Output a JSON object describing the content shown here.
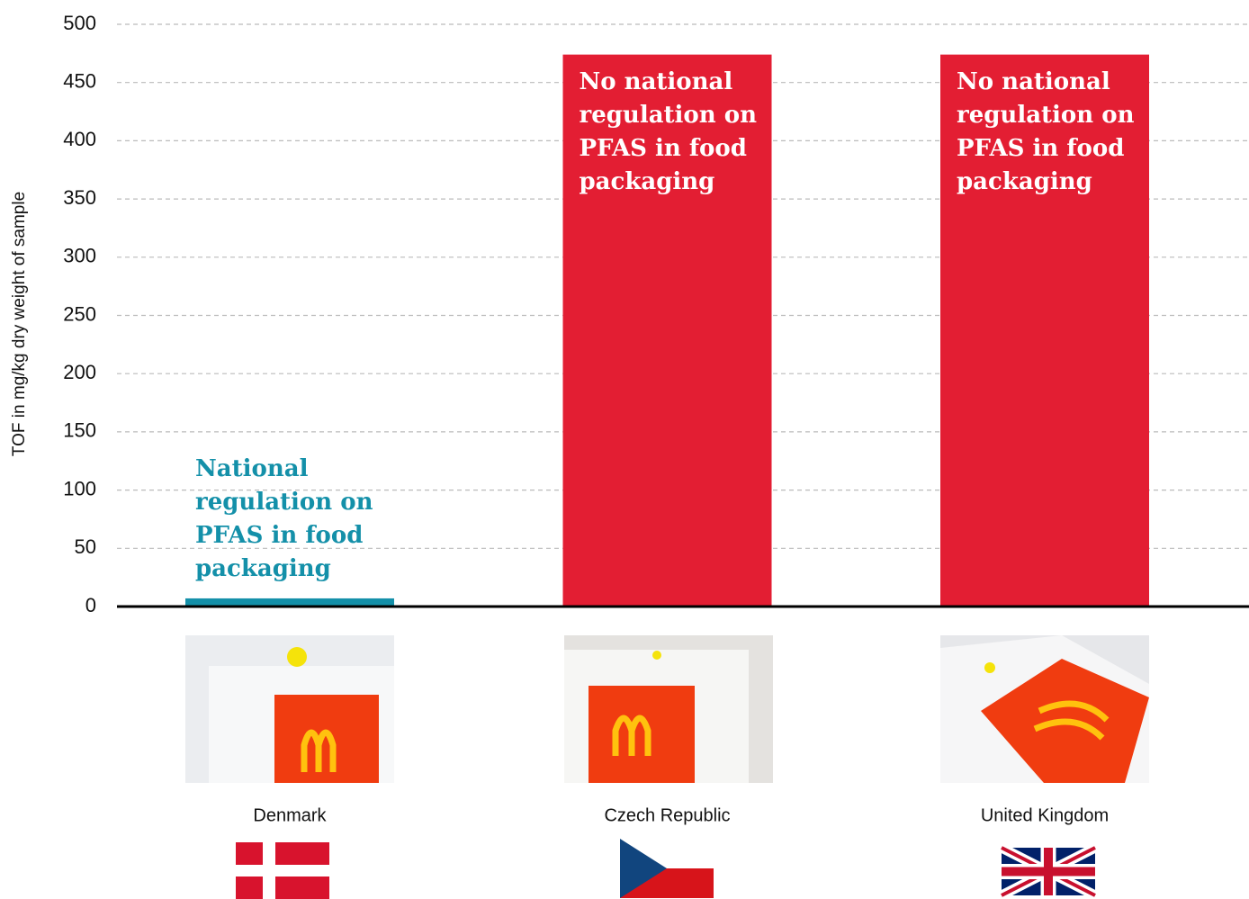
{
  "chart_data": {
    "type": "bar",
    "y_label": "TOF in mg/kg dry weight of sample",
    "categories": [
      "Denmark",
      "Czech Republic",
      "United Kingdom"
    ],
    "values": [
      7,
      474,
      474
    ],
    "colors": [
      "#1490a9",
      "#e31e33",
      "#e31e33"
    ],
    "annotations": [
      "National regulation on PFAS in food packaging",
      "No national regulation on PFAS in food packaging",
      "No national regulation on PFAS in food packaging"
    ],
    "ylim": [
      0,
      500
    ],
    "yticks": [
      0,
      50,
      100,
      150,
      200,
      250,
      300,
      350,
      400,
      450,
      500
    ],
    "grid": true
  }
}
